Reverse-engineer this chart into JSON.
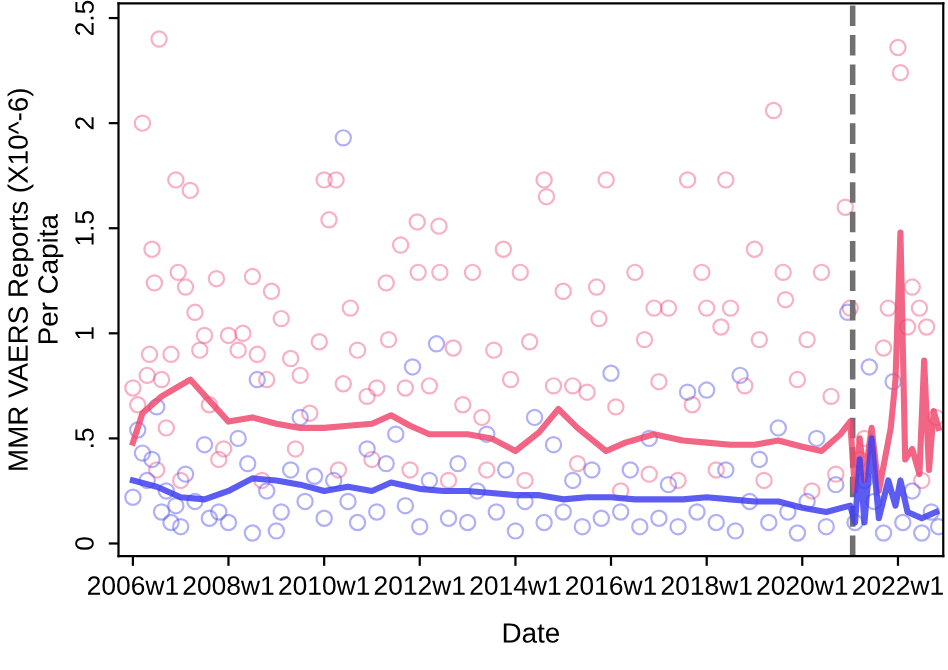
{
  "chart_data": {
    "type": "scatter",
    "xlabel": "Date",
    "ylabel": "MMR VAERS Reports (X10^-6)\nPer Capita",
    "xlim": [
      "2005-09-13",
      "2022-12-13"
    ],
    "ylim": [
      -0.06,
      2.57
    ],
    "xticks": [
      {
        "value": "2006-01-01",
        "label": "2006w1"
      },
      {
        "value": "2008-01-01",
        "label": "2008w1"
      },
      {
        "value": "2010-01-01",
        "label": "2010w1"
      },
      {
        "value": "2012-01-01",
        "label": "2012w1"
      },
      {
        "value": "2014-01-01",
        "label": "2014w1"
      },
      {
        "value": "2016-01-01",
        "label": "2016w1"
      },
      {
        "value": "2018-01-01",
        "label": "2018w1"
      },
      {
        "value": "2020-01-01",
        "label": "2020w1"
      },
      {
        "value": "2022-01-01",
        "label": "2022w1"
      }
    ],
    "yticks": [
      0,
      {
        "value": 0.5,
        "label": ".5"
      },
      1,
      1.5,
      2,
      2.5
    ],
    "grid": false,
    "legend": false,
    "marker": "circle",
    "series": [
      {
        "color": "#f0507a",
        "x": [
          "2006-01-01",
          "2006-02-07",
          "2006-03-15",
          "2006-04-20",
          "2006-05-08",
          "2006-05-27",
          "2006-06-14",
          "2006-07-20",
          "2006-08-08",
          "2006-09-13",
          "2006-10-19",
          "2006-11-25",
          "2006-12-13",
          "2007-02-07",
          "2007-03-15",
          "2007-04-20",
          "2007-05-27",
          "2007-07-02",
          "2007-08-08",
          "2007-10-01",
          "2007-11-25",
          "2008-01-01",
          "2008-03-15",
          "2008-04-20",
          "2008-07-02",
          "2008-08-08",
          "2008-10-19",
          "2008-11-25",
          "2009-02-07",
          "2009-04-20",
          "2009-07-02",
          "2009-09-13",
          "2009-11-25",
          "2010-01-01",
          "2010-02-07",
          "2010-04-02",
          "2010-05-27",
          "2010-07-20",
          "2010-09-13",
          "2010-11-25",
          "2011-02-07",
          "2011-04-20",
          "2011-05-08",
          "2011-08-08",
          "2011-09-13",
          "2011-12-13",
          "2011-12-20",
          "2012-03-15",
          "2012-05-27",
          "2012-06-03",
          "2012-09-13",
          "2012-11-25",
          "2013-02-07",
          "2013-04-20",
          "2013-07-20",
          "2013-10-01",
          "2013-11-25",
          "2014-02-07",
          "2014-04-20",
          "2014-08-08",
          "2014-08-26",
          "2014-10-19",
          "2015-01-01",
          "2015-03-15",
          "2015-07-02",
          "2015-09-13",
          "2015-10-01",
          "2015-11-25",
          "2016-02-07",
          "2016-07-02",
          "2016-09-13",
          "2016-11-25",
          "2017-01-01",
          "2017-03-15",
          "2017-08-08",
          "2017-09-13",
          "2017-11-25",
          "2018-01-01",
          "2018-04-20",
          "2018-05-27",
          "2018-07-02",
          "2018-10-19",
          "2019-01-01",
          "2019-02-07",
          "2019-05-27",
          "2019-08-08",
          "2019-08-26",
          "2019-11-25",
          "2020-02-07",
          "2020-05-27",
          "2020-08-08",
          "2020-11-25",
          "2021-01-01",
          "2021-04-20",
          "2021-09-13",
          "2021-10-19",
          "2022-01-01",
          "2022-01-20",
          "2022-03-15",
          "2022-04-20",
          "2022-06-14",
          "2022-08-08",
          "2022-10-19",
          "2006-07-02",
          "2007-01-01",
          "2007-10-19",
          "2008-09-13",
          "2009-05-27",
          "2010-04-20",
          "2011-01-01",
          "2011-10-19",
          "2012-08-08",
          "2013-05-27",
          "2014-03-15",
          "2015-04-20",
          "2016-03-15",
          "2016-10-19",
          "2017-05-27",
          "2018-03-15",
          "2019-03-15",
          "2020-03-15",
          "2020-09-13",
          "2021-03-15",
          "2022-07-02"
        ],
        "values": [
          0.74,
          0.66,
          2.0,
          0.8,
          0.9,
          1.4,
          1.24,
          2.4,
          0.78,
          0.55,
          0.9,
          1.73,
          1.29,
          1.22,
          1.68,
          1.1,
          0.92,
          0.99,
          0.66,
          1.26,
          0.45,
          0.99,
          0.92,
          1.0,
          1.27,
          0.9,
          0.78,
          1.2,
          1.07,
          0.88,
          0.8,
          0.62,
          0.96,
          1.73,
          1.54,
          1.73,
          0.76,
          1.12,
          0.92,
          0.7,
          0.74,
          1.24,
          0.97,
          1.42,
          0.74,
          1.53,
          1.29,
          0.75,
          1.51,
          1.29,
          0.93,
          0.66,
          1.29,
          0.6,
          0.92,
          1.4,
          0.78,
          1.29,
          0.96,
          1.73,
          1.65,
          0.75,
          1.2,
          0.75,
          0.72,
          1.22,
          1.07,
          1.73,
          0.65,
          1.29,
          0.97,
          1.12,
          0.77,
          1.12,
          1.73,
          0.66,
          1.29,
          1.12,
          1.03,
          1.73,
          1.12,
          0.75,
          1.4,
          0.97,
          2.06,
          1.29,
          1.16,
          0.78,
          0.97,
          1.29,
          0.7,
          1.6,
          1.12,
          0.5,
          0.93,
          1.12,
          2.36,
          2.24,
          1.03,
          1.22,
          1.12,
          1.03,
          0.6,
          0.35,
          0.3,
          0.4,
          0.3,
          0.45,
          0.35,
          0.4,
          0.35,
          0.3,
          0.35,
          0.3,
          0.38,
          0.25,
          0.33,
          0.3,
          0.35,
          0.3,
          0.25,
          0.33,
          0.4,
          0.3
        ]
      },
      {
        "color": "#5050f0",
        "x": [
          "2006-01-01",
          "2006-02-07",
          "2006-03-15",
          "2006-04-20",
          "2006-05-27",
          "2006-07-02",
          "2006-08-08",
          "2006-09-13",
          "2006-10-19",
          "2006-11-25",
          "2007-01-01",
          "2007-02-07",
          "2007-04-20",
          "2007-07-02",
          "2007-08-08",
          "2007-10-19",
          "2008-01-01",
          "2008-03-15",
          "2008-05-27",
          "2008-07-02",
          "2008-08-08",
          "2008-10-19",
          "2009-01-01",
          "2009-02-07",
          "2009-04-20",
          "2009-07-02",
          "2009-08-08",
          "2009-10-19",
          "2010-01-01",
          "2010-03-15",
          "2010-05-27",
          "2010-07-02",
          "2010-09-13",
          "2010-11-25",
          "2011-02-07",
          "2011-04-20",
          "2011-07-02",
          "2011-09-13",
          "2011-11-07",
          "2012-01-01",
          "2012-03-15",
          "2012-05-08",
          "2012-08-08",
          "2012-10-19",
          "2013-01-01",
          "2013-03-15",
          "2013-05-27",
          "2013-08-08",
          "2013-10-19",
          "2014-01-01",
          "2014-03-15",
          "2014-05-27",
          "2014-08-08",
          "2014-10-19",
          "2015-01-01",
          "2015-03-15",
          "2015-05-27",
          "2015-08-08",
          "2015-10-19",
          "2016-01-01",
          "2016-03-15",
          "2016-05-27",
          "2016-08-08",
          "2016-10-19",
          "2017-01-01",
          "2017-03-15",
          "2017-05-27",
          "2017-08-08",
          "2017-10-19",
          "2018-01-01",
          "2018-03-15",
          "2018-05-27",
          "2018-08-08",
          "2018-09-13",
          "2018-11-25",
          "2019-02-07",
          "2019-04-20",
          "2019-07-02",
          "2019-09-13",
          "2019-11-25",
          "2020-02-07",
          "2020-04-20",
          "2020-07-02",
          "2020-09-13",
          "2020-12-13",
          "2021-02-07",
          "2021-04-20",
          "2021-05-27",
          "2021-07-02",
          "2021-09-13",
          "2021-11-25",
          "2022-02-07",
          "2022-04-20",
          "2022-07-02",
          "2022-09-13",
          "2022-11-07"
        ],
        "values": [
          0.22,
          0.54,
          0.43,
          0.3,
          0.4,
          0.65,
          0.15,
          0.25,
          0.1,
          0.18,
          0.08,
          0.33,
          0.2,
          0.47,
          0.12,
          0.15,
          0.1,
          0.5,
          0.38,
          0.05,
          0.78,
          0.25,
          0.06,
          0.15,
          0.35,
          0.6,
          0.2,
          0.32,
          0.12,
          0.3,
          1.93,
          0.2,
          0.1,
          0.45,
          0.15,
          0.38,
          0.52,
          0.18,
          0.84,
          0.08,
          0.3,
          0.95,
          0.12,
          0.38,
          0.1,
          0.25,
          0.52,
          0.15,
          0.35,
          0.06,
          0.2,
          0.6,
          0.1,
          0.47,
          0.15,
          0.3,
          0.08,
          0.35,
          0.12,
          0.81,
          0.15,
          0.35,
          0.08,
          0.5,
          0.12,
          0.28,
          0.08,
          0.72,
          0.15,
          0.73,
          0.1,
          0.35,
          0.06,
          0.8,
          0.2,
          0.4,
          0.1,
          0.55,
          0.15,
          0.05,
          0.2,
          0.5,
          0.08,
          0.28,
          1.1,
          0.1,
          0.3,
          0.84,
          0.2,
          0.05,
          0.77,
          0.1,
          0.25,
          0.05,
          0.15,
          0.08
        ]
      },
      {
        "type": "line",
        "marker": "none",
        "color": "#f04a6e",
        "x": [
          "2006-01-01",
          "2006-03-15",
          "2006-08-08",
          "2007-03-15",
          "2007-08-08",
          "2008-01-01",
          "2008-07-02",
          "2009-01-01",
          "2009-07-02",
          "2010-01-01",
          "2010-07-02",
          "2011-01-01",
          "2011-05-27",
          "2011-10-19",
          "2012-03-15",
          "2013-01-01",
          "2013-07-02",
          "2014-01-01",
          "2014-07-02",
          "2014-11-25",
          "2015-04-20",
          "2015-11-25",
          "2016-04-20",
          "2016-11-25",
          "2017-07-02",
          "2018-01-01",
          "2018-07-02",
          "2019-01-01",
          "2019-07-02",
          "2020-01-01",
          "2020-05-27",
          "2020-10-19",
          "2021-01-01",
          "2021-02-07",
          "2021-03-15",
          "2021-04-20",
          "2021-06-14",
          "2021-08-08",
          "2021-11-07",
          "2021-12-13",
          "2022-01-20",
          "2022-02-25",
          "2022-04-20",
          "2022-06-14",
          "2022-07-20",
          "2022-08-26",
          "2022-10-01",
          "2022-11-07"
        ],
        "values": [
          0.48,
          0.62,
          0.7,
          0.78,
          0.68,
          0.58,
          0.6,
          0.57,
          0.55,
          0.55,
          0.56,
          0.57,
          0.61,
          0.56,
          0.52,
          0.52,
          0.5,
          0.44,
          0.53,
          0.64,
          0.55,
          0.44,
          0.48,
          0.52,
          0.49,
          0.48,
          0.47,
          0.47,
          0.49,
          0.46,
          0.44,
          0.52,
          0.58,
          0.25,
          0.5,
          0.3,
          0.55,
          0.25,
          0.55,
          0.78,
          1.48,
          0.4,
          0.45,
          0.33,
          0.87,
          0.35,
          0.63,
          0.55
        ]
      },
      {
        "type": "line",
        "marker": "none",
        "color": "#4040f0",
        "x": [
          "2006-01-01",
          "2006-07-02",
          "2007-01-01",
          "2007-07-02",
          "2008-01-01",
          "2008-07-02",
          "2009-01-01",
          "2009-07-02",
          "2010-01-01",
          "2010-07-02",
          "2011-01-01",
          "2011-05-27",
          "2012-01-01",
          "2012-07-02",
          "2013-01-01",
          "2013-07-02",
          "2014-01-01",
          "2014-07-02",
          "2015-01-01",
          "2015-07-02",
          "2016-01-01",
          "2016-07-02",
          "2017-01-01",
          "2017-07-02",
          "2018-01-01",
          "2018-07-02",
          "2019-01-01",
          "2019-07-02",
          "2020-01-01",
          "2020-07-02",
          "2021-01-01",
          "2021-02-07",
          "2021-03-15",
          "2021-04-20",
          "2021-06-14",
          "2021-08-08",
          "2021-10-19",
          "2021-12-13",
          "2022-01-20",
          "2022-03-15",
          "2022-07-02",
          "2022-10-19"
        ],
        "values": [
          0.3,
          0.27,
          0.22,
          0.21,
          0.25,
          0.31,
          0.3,
          0.28,
          0.25,
          0.27,
          0.25,
          0.29,
          0.26,
          0.25,
          0.25,
          0.24,
          0.23,
          0.23,
          0.21,
          0.22,
          0.22,
          0.21,
          0.21,
          0.21,
          0.22,
          0.21,
          0.2,
          0.2,
          0.17,
          0.15,
          0.18,
          0.1,
          0.4,
          0.1,
          0.5,
          0.12,
          0.3,
          0.18,
          0.3,
          0.15,
          0.12,
          0.15
        ]
      }
    ],
    "ref_lines": [
      {
        "axis": "x",
        "value": "2021-01-20",
        "color": "#707070",
        "line_style": "dashed"
      }
    ]
  }
}
